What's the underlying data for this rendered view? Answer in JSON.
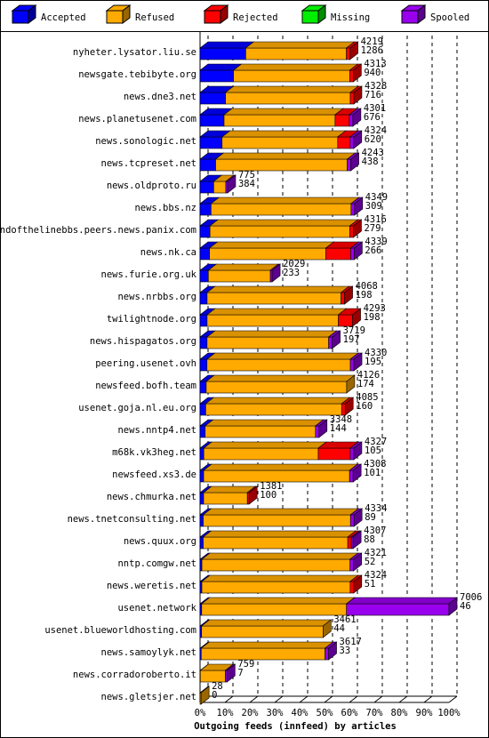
{
  "chart_data": {
    "type": "bar3d",
    "orientation": "horizontal",
    "stacked": true,
    "legend": "top",
    "grid": true,
    "xlabel": "Outgoing feeds (innfeed) by articles",
    "categories": [
      "nyheter.lysator.liu.se",
      "newsgate.tebibyte.org",
      "news.dne3.net",
      "news.planetusenet.com",
      "news.sonologic.net",
      "news.tcpreset.net",
      "news.oldproto.ru",
      "news.bbs.nz",
      "endofthelinebbs.peers.news.panix.com",
      "news.nk.ca",
      "news.furie.org.uk",
      "news.nrbbs.org",
      "twilightnode.org",
      "news.hispagatos.org",
      "peering.usenet.ovh",
      "newsfeed.bofh.team",
      "usenet.goja.nl.eu.org",
      "news.nntp4.net",
      "m68k.vk3heg.net",
      "newsfeed.xs3.de",
      "news.chmurka.net",
      "news.tnetconsulting.net",
      "news.quux.org",
      "nntp.comgw.net",
      "news.weretis.net",
      "usenet.network",
      "usenet.blueworldhosting.com",
      "news.samoylyk.net",
      "news.corradoroberto.it",
      "news.gletsjer.net"
    ],
    "totals": [
      4219,
      4313,
      4328,
      4301,
      4324,
      4243,
      775,
      4349,
      4316,
      4339,
      2029,
      4068,
      4293,
      3719,
      4330,
      4126,
      4085,
      3348,
      4327,
      4308,
      1381,
      4334,
      4307,
      4321,
      4324,
      7006,
      3461,
      3617,
      759,
      28
    ],
    "series": [
      {
        "name": "Accepted",
        "color": "#0000ff",
        "values": [
          1286,
          940,
          716,
          676,
          620,
          438,
          384,
          309,
          279,
          266,
          233,
          198,
          198,
          197,
          195,
          174,
          160,
          144,
          105,
          101,
          100,
          89,
          88,
          52,
          51,
          46,
          44,
          33,
          7,
          0
        ]
      },
      {
        "name": "Refused",
        "color": "#ffaa00",
        "values": [
          2833,
          3273,
          3512,
          3125,
          3254,
          3705,
          341,
          3940,
          3937,
          3273,
          1746,
          3770,
          3695,
          3422,
          4035,
          3952,
          3825,
          3104,
          3222,
          4107,
          1231,
          4145,
          4069,
          4169,
          4173,
          4075,
          3417,
          3484,
          702,
          28
        ]
      },
      {
        "name": "Rejected",
        "color": "#ff0000",
        "values": [
          100,
          100,
          100,
          400,
          350,
          0,
          0,
          0,
          100,
          700,
          0,
          100,
          400,
          0,
          0,
          0,
          100,
          0,
          900,
          0,
          50,
          0,
          100,
          0,
          100,
          0,
          0,
          0,
          0,
          0
        ]
      },
      {
        "name": "Missing",
        "color": "#00ee00",
        "values": [
          0,
          0,
          0,
          0,
          0,
          0,
          0,
          0,
          0,
          0,
          0,
          0,
          0,
          0,
          0,
          0,
          0,
          0,
          0,
          0,
          0,
          0,
          0,
          0,
          0,
          0,
          0,
          0,
          0,
          0
        ]
      },
      {
        "name": "Spooled",
        "color": "#9900ee",
        "values": [
          0,
          0,
          0,
          100,
          100,
          100,
          50,
          100,
          0,
          100,
          50,
          0,
          0,
          100,
          100,
          0,
          0,
          100,
          100,
          100,
          0,
          100,
          50,
          100,
          0,
          2885,
          0,
          100,
          50,
          0
        ]
      }
    ],
    "xlim": [
      0,
      7006
    ],
    "xticks": [
      {
        "value": 0,
        "label": "0%"
      },
      {
        "value": 700.6,
        "label": "10%"
      },
      {
        "value": 1401.2,
        "label": "20%"
      },
      {
        "value": 2101.8,
        "label": "30%"
      },
      {
        "value": 2802.4,
        "label": "40%"
      },
      {
        "value": 3503,
        "label": "50%"
      },
      {
        "value": 4203.6,
        "label": "60%"
      },
      {
        "value": 4904.2,
        "label": "70%"
      },
      {
        "value": 5604.8,
        "label": "80%"
      },
      {
        "value": 6305.4,
        "label": "90%"
      },
      {
        "value": 7006,
        "label": "100%"
      }
    ]
  }
}
